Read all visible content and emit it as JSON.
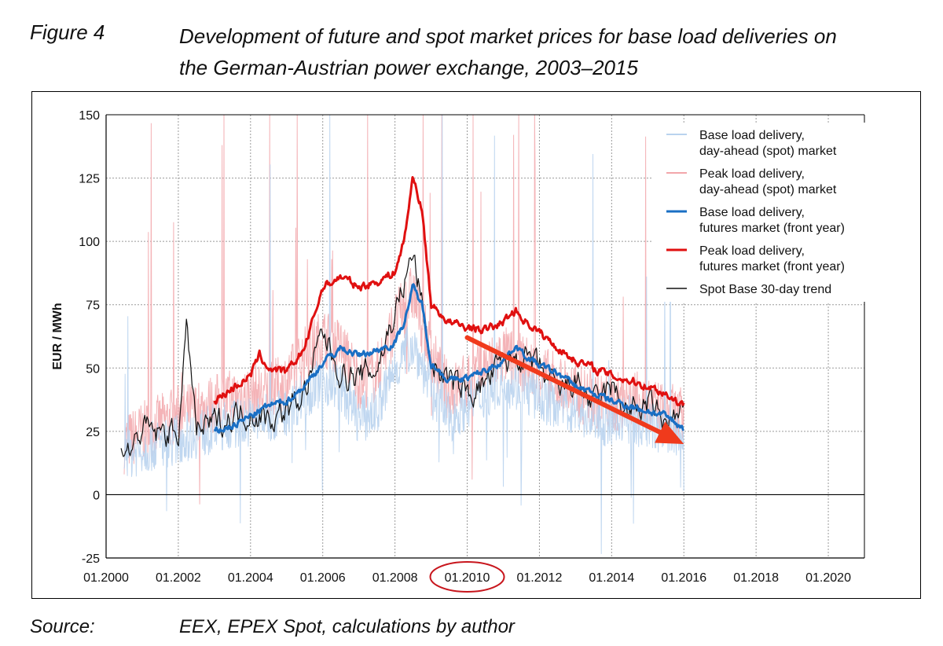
{
  "header": {
    "figure_label": "Figure 4",
    "title_line1": "Development of future and spot market prices for base load deliveries on",
    "title_line2": "the German-Austrian power exchange, 2003–2015"
  },
  "footer": {
    "source_label": "Source:",
    "source_text": "EEX, EPEX Spot, calculations by author"
  },
  "chart_data": {
    "type": "line",
    "title": "",
    "ylabel": "EUR / MWh",
    "xlabel": "",
    "x_range": [
      "2000-01",
      "2021-01"
    ],
    "ylim": [
      -25,
      150
    ],
    "y_ticks": [
      -25,
      0,
      25,
      50,
      75,
      100,
      125,
      150
    ],
    "x_tick_labels": [
      "01.2000",
      "01.2002",
      "01.2004",
      "01.2006",
      "01.2008",
      "01.2010",
      "01.2012",
      "01.2014",
      "01.2016",
      "01.2018",
      "01.2020"
    ],
    "highlighted_tick": "01.2010",
    "grid": true,
    "legend_position": "top-right",
    "colors": {
      "base_spot": "#b9d3ee",
      "peak_spot": "#f2a6aa",
      "base_futures": "#1a6fc4",
      "peak_futures": "#e01010",
      "spot_trend": "#111111",
      "arrow": "#f03a1c",
      "highlight_circle": "#c8161d"
    },
    "series": [
      {
        "name": "Base load delivery, day-ahead (spot) market",
        "style": "thin light-blue daily line",
        "x": [
          "2000-07",
          "2001-01",
          "2001-07",
          "2002-01",
          "2002-07",
          "2003-01",
          "2003-07",
          "2004-01",
          "2004-07",
          "2005-01",
          "2005-07",
          "2006-01",
          "2006-07",
          "2007-01",
          "2007-07",
          "2008-01",
          "2008-07",
          "2009-01",
          "2009-07",
          "2010-01",
          "2010-07",
          "2011-01",
          "2011-07",
          "2012-01",
          "2012-07",
          "2013-01",
          "2013-07",
          "2014-01",
          "2014-07",
          "2015-01",
          "2015-07",
          "2016-01"
        ],
        "values": [
          15,
          18,
          20,
          22,
          24,
          26,
          28,
          29,
          30,
          33,
          40,
          45,
          42,
          30,
          33,
          50,
          60,
          42,
          30,
          36,
          40,
          45,
          42,
          38,
          36,
          33,
          30,
          28,
          30,
          27,
          25,
          22
        ]
      },
      {
        "name": "Peak load delivery, day-ahead (spot) market",
        "style": "thin light-red daily line",
        "x": [
          "2000-07",
          "2001-01",
          "2001-07",
          "2002-01",
          "2002-07",
          "2003-01",
          "2003-07",
          "2004-01",
          "2004-07",
          "2005-01",
          "2005-07",
          "2006-01",
          "2006-07",
          "2007-01",
          "2007-07",
          "2008-01",
          "2008-07",
          "2009-01",
          "2009-07",
          "2010-01",
          "2010-07",
          "2011-01",
          "2011-07",
          "2012-01",
          "2012-07",
          "2013-01",
          "2013-07",
          "2014-01",
          "2014-07",
          "2015-01",
          "2015-07",
          "2016-01"
        ],
        "values": [
          20,
          25,
          28,
          32,
          33,
          36,
          38,
          40,
          40,
          45,
          55,
          62,
          58,
          45,
          48,
          68,
          80,
          55,
          40,
          45,
          50,
          55,
          52,
          48,
          44,
          40,
          38,
          36,
          38,
          35,
          33,
          30
        ]
      },
      {
        "name": "Base load delivery, futures market (front year)",
        "style": "thick blue line",
        "x": [
          "2003-01",
          "2003-07",
          "2004-01",
          "2004-07",
          "2005-01",
          "2005-07",
          "2006-01",
          "2006-07",
          "2007-01",
          "2007-07",
          "2008-01",
          "2008-04",
          "2008-07",
          "2008-10",
          "2009-01",
          "2009-07",
          "2010-01",
          "2010-07",
          "2011-01",
          "2011-05",
          "2011-07",
          "2012-01",
          "2012-07",
          "2013-01",
          "2013-07",
          "2014-01",
          "2014-07",
          "2015-01",
          "2015-07",
          "2016-01"
        ],
        "values": [
          25,
          27,
          31,
          35,
          37,
          43,
          52,
          58,
          55,
          57,
          60,
          68,
          82,
          75,
          52,
          45,
          46,
          49,
          53,
          59,
          56,
          51,
          48,
          43,
          40,
          37,
          35,
          33,
          31,
          26
        ]
      },
      {
        "name": "Peak load delivery, futures market (front year)",
        "style": "thick red line",
        "x": [
          "2003-01",
          "2003-07",
          "2004-01",
          "2004-04",
          "2004-07",
          "2005-01",
          "2005-07",
          "2006-01",
          "2006-07",
          "2007-01",
          "2007-07",
          "2008-01",
          "2008-04",
          "2008-07",
          "2008-10",
          "2009-01",
          "2009-07",
          "2010-01",
          "2010-07",
          "2011-01",
          "2011-05",
          "2011-07",
          "2012-01",
          "2012-07",
          "2013-01",
          "2013-07",
          "2014-01",
          "2014-07",
          "2015-01",
          "2015-07",
          "2016-01"
        ],
        "values": [
          37,
          42,
          47,
          55,
          50,
          48,
          58,
          82,
          86,
          82,
          84,
          88,
          100,
          126,
          112,
          75,
          68,
          66,
          65,
          68,
          73,
          70,
          64,
          58,
          53,
          50,
          47,
          45,
          43,
          40,
          35
        ]
      },
      {
        "name": "Spot Base 30-day trend",
        "style": "thin black line",
        "x": [
          "2000-06",
          "2000-09",
          "2001-01",
          "2001-06",
          "2002-01",
          "2002-04",
          "2002-07",
          "2003-01",
          "2003-07",
          "2004-01",
          "2004-07",
          "2005-01",
          "2005-07",
          "2006-01",
          "2006-07",
          "2007-01",
          "2007-07",
          "2008-01",
          "2008-07",
          "2008-10",
          "2009-01",
          "2009-07",
          "2010-01",
          "2010-07",
          "2011-01",
          "2011-07",
          "2012-01",
          "2012-07",
          "2013-01",
          "2013-07",
          "2014-01",
          "2014-07",
          "2015-01",
          "2015-07",
          "2016-01"
        ],
        "values": [
          19,
          17,
          26,
          24,
          25,
          66,
          25,
          28,
          31,
          33,
          30,
          33,
          40,
          64,
          48,
          46,
          50,
          72,
          95,
          75,
          52,
          45,
          40,
          44,
          52,
          55,
          49,
          40,
          45,
          35,
          42,
          32,
          36,
          28,
          32
        ]
      }
    ],
    "annotations": [
      {
        "type": "arrow",
        "label": "downward trend arrow",
        "from": [
          "2010-01",
          62
        ],
        "to": [
          "2016-01",
          20
        ]
      },
      {
        "type": "circle",
        "label": "highlight around 01.2010 tick label"
      }
    ]
  }
}
